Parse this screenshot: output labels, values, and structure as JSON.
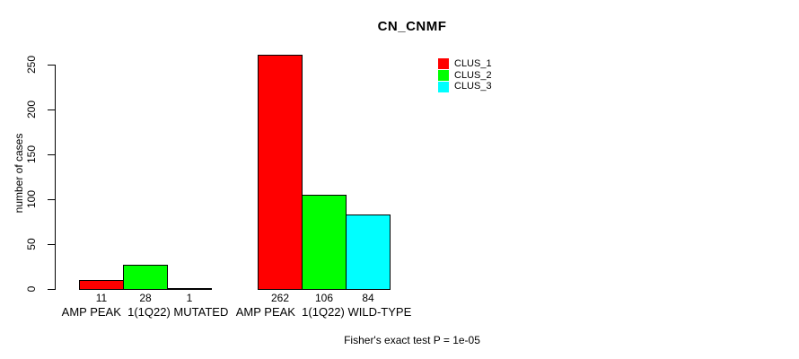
{
  "chart_data": {
    "type": "bar",
    "title": "CN_CNMF",
    "ylabel": "number of cases",
    "categories": [
      "AMP PEAK  1(1Q22) MUTATED",
      "AMP PEAK  1(1Q22) WILD-TYPE"
    ],
    "series": [
      {
        "name": "CLUS_1",
        "color": "#ff0000",
        "values": [
          11,
          262
        ]
      },
      {
        "name": "CLUS_2",
        "color": "#00ff00",
        "values": [
          28,
          106
        ]
      },
      {
        "name": "CLUS_3",
        "color": "#00ffff",
        "values": [
          1,
          84
        ]
      }
    ],
    "yticks": [
      0,
      50,
      100,
      150,
      200,
      250
    ],
    "ylim": [
      0,
      263
    ],
    "grid": false,
    "legend_position": "top-right",
    "annotation": "Fisher's exact test P = 1e-05",
    "bar_border_color": "#000000",
    "axis_color": "#000000",
    "background_color": "#ffffff"
  }
}
